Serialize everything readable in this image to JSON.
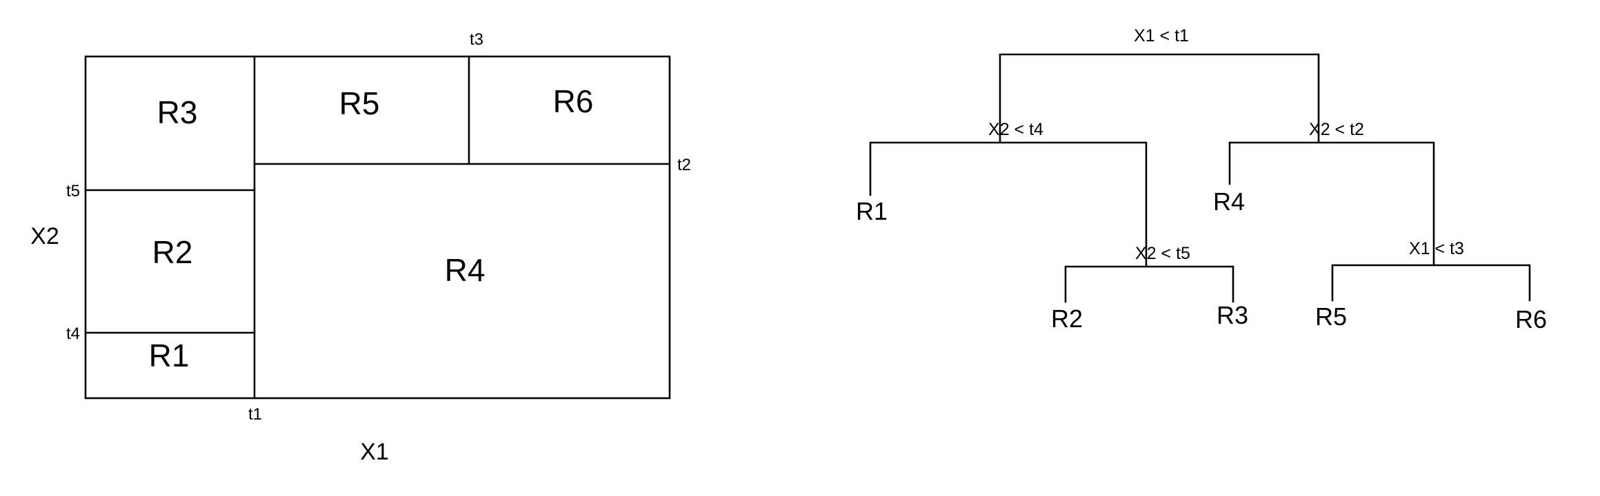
{
  "partition": {
    "axis_x": "X1",
    "axis_y": "X2",
    "thresholds": {
      "t1": "t1",
      "t2": "t2",
      "t3": "t3",
      "t4": "t4",
      "t5": "t5"
    },
    "regions": {
      "r1": "R1",
      "r2": "R2",
      "r3": "R3",
      "r4": "R4",
      "r5": "R5",
      "r6": "R6"
    }
  },
  "tree": {
    "root": "X1 < t1",
    "left_split": "X2 < t4",
    "right_split": "X2 < t2",
    "left_right_split": "X2 < t5",
    "right_right_split": "X1 < t3",
    "leaves": {
      "r1": "R1",
      "r2": "R2",
      "r3": "R3",
      "r4": "R4",
      "r5": "R5",
      "r6": "R6"
    }
  }
}
